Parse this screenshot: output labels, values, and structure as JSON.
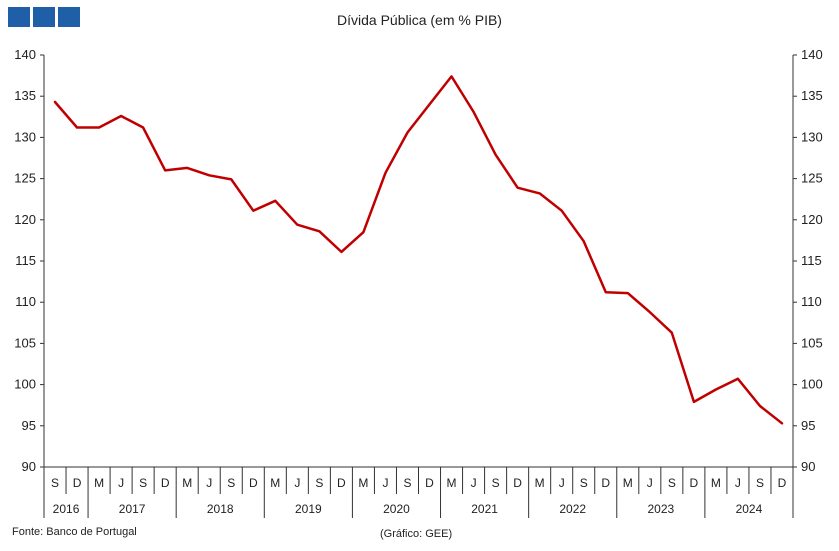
{
  "header": {
    "title": "Dívida Pública (em % PIB)",
    "logo_icon": "gee-logo-icon"
  },
  "footer": {
    "source": "Fonte: Banco de Portugal",
    "credit": "(Gráfico: GEE)"
  },
  "chart_data": {
    "type": "line",
    "title": "Dívida Pública (em % PIB)",
    "xlabel": "",
    "ylabel": "",
    "ylim": [
      90,
      140
    ],
    "yticks": [
      90,
      95,
      100,
      105,
      110,
      115,
      120,
      125,
      130,
      135,
      140
    ],
    "right_axis": true,
    "grid": false,
    "color": "#c00000",
    "categories": [
      "S",
      "D",
      "M",
      "J",
      "S",
      "D",
      "M",
      "J",
      "S",
      "D",
      "M",
      "J",
      "S",
      "D",
      "M",
      "J",
      "S",
      "D",
      "M",
      "J",
      "S",
      "D",
      "M",
      "J",
      "S",
      "D",
      "M",
      "J",
      "S",
      "D",
      "M",
      "J",
      "S",
      "D"
    ],
    "year_groups": [
      {
        "label": "2016",
        "count": 2
      },
      {
        "label": "2017",
        "count": 4
      },
      {
        "label": "2018",
        "count": 4
      },
      {
        "label": "2019",
        "count": 4
      },
      {
        "label": "2020",
        "count": 4
      },
      {
        "label": "2021",
        "count": 4
      },
      {
        "label": "2022",
        "count": 4
      },
      {
        "label": "2023",
        "count": 4
      },
      {
        "label": "2024",
        "count": 4
      }
    ],
    "series": [
      {
        "values": [
          134.3,
          131.2,
          131.2,
          132.6,
          131.2,
          126.0,
          126.3,
          125.4,
          124.9,
          121.1,
          122.3,
          119.4,
          118.6,
          116.1,
          118.5,
          125.7,
          130.6,
          134.0,
          137.4,
          133.1,
          127.9,
          123.9,
          123.2,
          121.1,
          117.4,
          111.2,
          111.1,
          108.8,
          106.3,
          97.9,
          99.4,
          100.7,
          97.4,
          95.3
        ]
      }
    ]
  }
}
